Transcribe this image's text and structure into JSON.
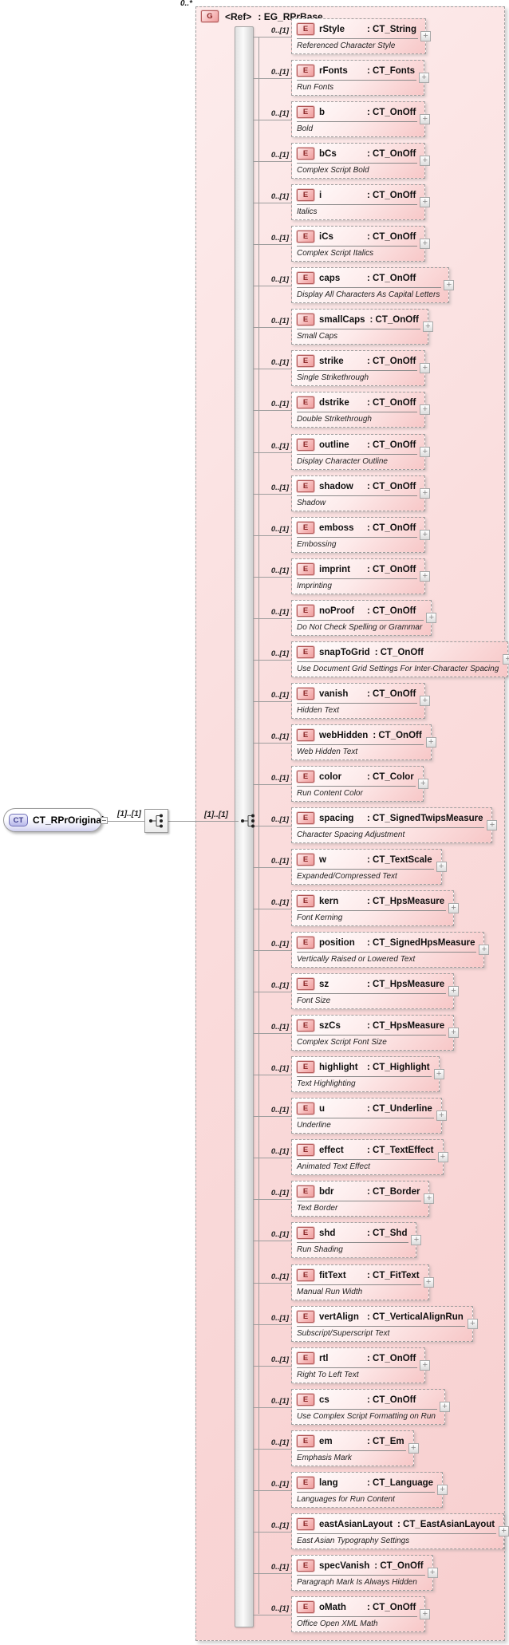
{
  "diagram": {
    "root": {
      "badge": "CT",
      "name": "CT_RPrOriginal",
      "cardinality_outer": "[1]..[1]",
      "cardinality_inner": "[1]..[1]"
    },
    "group": {
      "occurrence": "0..*",
      "badge": "G",
      "ref": "<Ref>",
      "type": "EG_RPrBase",
      "element_badge": "E",
      "element_cardinality": "0..[1]",
      "expand_symbol": "+",
      "elements": [
        {
          "name": "rStyle",
          "type": "CT_String",
          "annotation": "Referenced Character Style"
        },
        {
          "name": "rFonts",
          "type": "CT_Fonts",
          "annotation": "Run Fonts"
        },
        {
          "name": "b",
          "type": "CT_OnOff",
          "annotation": "Bold"
        },
        {
          "name": "bCs",
          "type": "CT_OnOff",
          "annotation": "Complex Script Bold"
        },
        {
          "name": "i",
          "type": "CT_OnOff",
          "annotation": "Italics"
        },
        {
          "name": "iCs",
          "type": "CT_OnOff",
          "annotation": "Complex Script Italics"
        },
        {
          "name": "caps",
          "type": "CT_OnOff",
          "annotation": "Display All Characters As Capital Letters"
        },
        {
          "name": "smallCaps",
          "type": "CT_OnOff",
          "annotation": "Small Caps"
        },
        {
          "name": "strike",
          "type": "CT_OnOff",
          "annotation": "Single Strikethrough"
        },
        {
          "name": "dstrike",
          "type": "CT_OnOff",
          "annotation": "Double Strikethrough"
        },
        {
          "name": "outline",
          "type": "CT_OnOff",
          "annotation": "Display Character Outline"
        },
        {
          "name": "shadow",
          "type": "CT_OnOff",
          "annotation": "Shadow"
        },
        {
          "name": "emboss",
          "type": "CT_OnOff",
          "annotation": "Embossing"
        },
        {
          "name": "imprint",
          "type": "CT_OnOff",
          "annotation": "Imprinting"
        },
        {
          "name": "noProof",
          "type": "CT_OnOff",
          "annotation": "Do Not Check Spelling or Grammar"
        },
        {
          "name": "snapToGrid",
          "type": "CT_OnOff",
          "annotation": "Use Document Grid Settings For Inter-Character Spacing"
        },
        {
          "name": "vanish",
          "type": "CT_OnOff",
          "annotation": "Hidden Text"
        },
        {
          "name": "webHidden",
          "type": "CT_OnOff",
          "annotation": "Web Hidden Text"
        },
        {
          "name": "color",
          "type": "CT_Color",
          "annotation": "Run Content Color"
        },
        {
          "name": "spacing",
          "type": "CT_SignedTwipsMeasure",
          "annotation": "Character Spacing Adjustment"
        },
        {
          "name": "w",
          "type": "CT_TextScale",
          "annotation": "Expanded/Compressed Text"
        },
        {
          "name": "kern",
          "type": "CT_HpsMeasure",
          "annotation": "Font Kerning"
        },
        {
          "name": "position",
          "type": "CT_SignedHpsMeasure",
          "annotation": "Vertically Raised or Lowered Text"
        },
        {
          "name": "sz",
          "type": "CT_HpsMeasure",
          "annotation": "Font Size"
        },
        {
          "name": "szCs",
          "type": "CT_HpsMeasure",
          "annotation": "Complex Script Font Size"
        },
        {
          "name": "highlight",
          "type": "CT_Highlight",
          "annotation": "Text Highlighting"
        },
        {
          "name": "u",
          "type": "CT_Underline",
          "annotation": "Underline"
        },
        {
          "name": "effect",
          "type": "CT_TextEffect",
          "annotation": "Animated Text Effect"
        },
        {
          "name": "bdr",
          "type": "CT_Border",
          "annotation": "Text Border"
        },
        {
          "name": "shd",
          "type": "CT_Shd",
          "annotation": "Run Shading"
        },
        {
          "name": "fitText",
          "type": "CT_FitText",
          "annotation": "Manual Run Width"
        },
        {
          "name": "vertAlign",
          "type": "CT_VerticalAlignRun",
          "annotation": "Subscript/Superscript Text"
        },
        {
          "name": "rtl",
          "type": "CT_OnOff",
          "annotation": "Right To Left Text"
        },
        {
          "name": "cs",
          "type": "CT_OnOff",
          "annotation": "Use Complex Script Formatting on Run"
        },
        {
          "name": "em",
          "type": "CT_Em",
          "annotation": "Emphasis Mark"
        },
        {
          "name": "lang",
          "type": "CT_Language",
          "annotation": "Languages for Run Content"
        },
        {
          "name": "eastAsianLayout",
          "type": "CT_EastAsianLayout",
          "annotation": "East Asian Typography Settings"
        },
        {
          "name": "specVanish",
          "type": "CT_OnOff",
          "annotation": "Paragraph Mark Is Always Hidden"
        },
        {
          "name": "oMath",
          "type": "CT_OnOff",
          "annotation": "Office Open XML Math"
        }
      ]
    },
    "colors": {
      "group_fill": "#f8cfcf",
      "element_fill": "#f7c7c7",
      "element_badge_border": "#b25858",
      "element_badge_text": "#8a2525",
      "root_badge_border": "#7070b8",
      "root_badge_text": "#3b3b8c",
      "line": "#9e9e9e"
    }
  }
}
